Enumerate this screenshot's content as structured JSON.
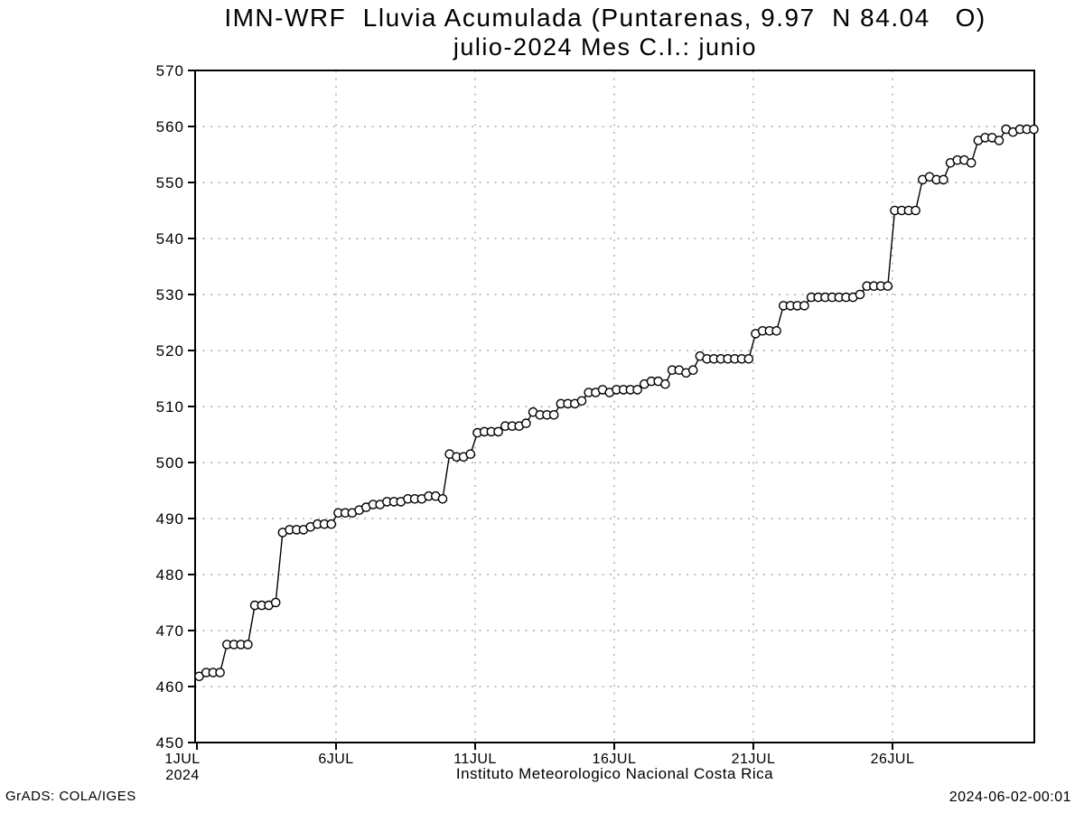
{
  "window": {
    "background": "#ffffff"
  },
  "title": {
    "line1": "IMN-WRF  Lluvia Acumulada (Puntarenas, 9.97  N 84.04   O)",
    "line2": "julio-2024 Mes C.I.: junio"
  },
  "footer": {
    "left": "GrADS: COLA/IGES",
    "right": "2024-06-02-00:01"
  },
  "chart_data": {
    "type": "line",
    "marker": "open-circle",
    "title": "IMN-WRF Lluvia Acumulada (Puntarenas, 9.97 N 84.04 O)",
    "subtitle": "julio-2024 Mes C.I.: junio",
    "xlabel": "Instituto Meteorologico Nacional Costa Rica",
    "ylabel": "",
    "ylim": [
      450,
      570
    ],
    "yticks": [
      450,
      460,
      470,
      480,
      490,
      500,
      510,
      520,
      530,
      540,
      550,
      560,
      570
    ],
    "xticks": [
      {
        "day": 1,
        "label": "1JUL",
        "sublabel": "2024"
      },
      {
        "day": 6,
        "label": "6JUL"
      },
      {
        "day": 11,
        "label": "11JUL"
      },
      {
        "day": 16,
        "label": "16JUL"
      },
      {
        "day": 21,
        "label": "21JUL"
      },
      {
        "day": 26,
        "label": "26JUL"
      }
    ],
    "x_range_days": [
      1,
      31.2
    ],
    "sampling": {
      "start_day": 1,
      "step_days": 0.25,
      "month": "JUL",
      "year": 2024
    },
    "grid": true,
    "legend": false,
    "colors": {
      "line": "#000000",
      "marker_fill": "#ffffff",
      "grid": "#aaaaaa",
      "frame": "#000000",
      "text": "#000000",
      "background": "#ffffff"
    },
    "values": [
      461.8,
      462.5,
      462.5,
      462.5,
      467.5,
      467.5,
      467.5,
      467.5,
      474.5,
      474.5,
      474.5,
      475,
      487.5,
      488,
      488,
      488,
      488.5,
      489,
      489,
      489,
      491,
      491,
      491,
      491.5,
      492,
      492.5,
      492.5,
      493,
      493,
      493,
      493.5,
      493.5,
      493.5,
      494,
      494,
      493.5,
      501.5,
      501,
      501,
      501.5,
      505.3,
      505.5,
      505.5,
      505.5,
      506.5,
      506.5,
      506.5,
      507,
      509,
      508.5,
      508.5,
      508.5,
      510.5,
      510.5,
      510.5,
      511,
      512.5,
      512.5,
      513,
      512.5,
      513,
      513,
      513,
      513,
      514,
      514.5,
      514.5,
      514,
      516.5,
      516.5,
      516,
      516.5,
      519,
      518.5,
      518.5,
      518.5,
      518.5,
      518.5,
      518.5,
      518.5,
      523,
      523.5,
      523.5,
      523.5,
      528,
      528,
      528,
      528,
      529.5,
      529.5,
      529.5,
      529.5,
      529.5,
      529.5,
      529.5,
      530,
      531.5,
      531.5,
      531.5,
      531.5,
      545,
      545,
      545,
      545,
      550.5,
      551,
      550.5,
      550.5,
      553.5,
      554,
      554,
      553.5,
      557.5,
      558,
      558,
      557.5,
      559.5,
      559,
      559.5,
      559.5,
      559.5
    ]
  }
}
